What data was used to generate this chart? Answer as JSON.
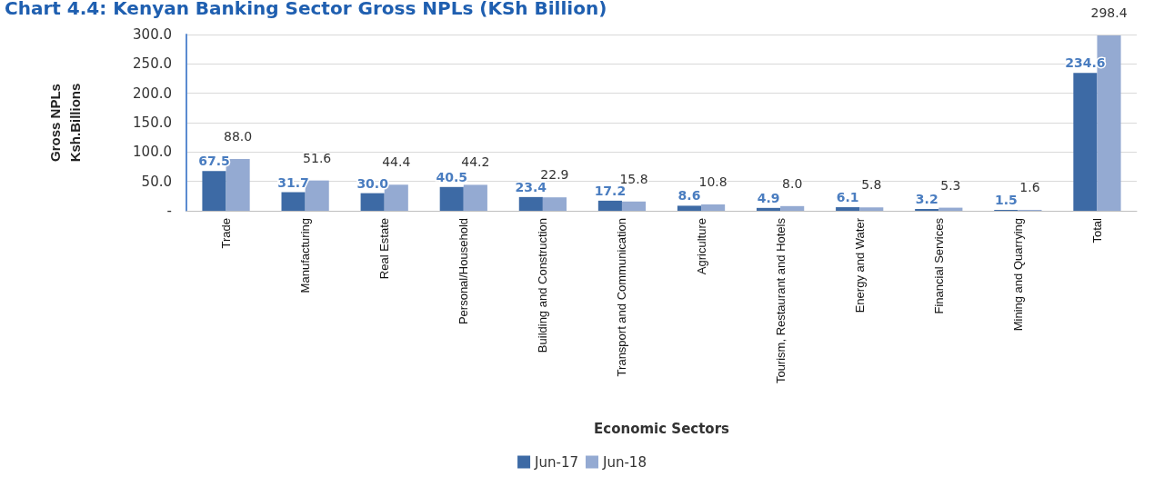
{
  "chart_data": {
    "type": "bar",
    "title": "Chart 4.4: Kenyan Banking Sector Gross NPLs (KSh Billion)",
    "xlabel": "Economic Sectors",
    "ylabel": "Gross NPLs\nKsh.Billions",
    "categories": [
      "Trade",
      "Manufacturing",
      "Real Estate",
      "Personal/Household",
      "Building and Construction",
      "Transport and Communication",
      "Agriculture",
      "Tourism, Restaurant and Hotels",
      "Energy and Water",
      "Financial Services",
      "Mining and Quarrying",
      "Total"
    ],
    "series": [
      {
        "name": "Jun-17",
        "color": "#3d6aa5",
        "values": [
          67.5,
          31.7,
          30.0,
          40.5,
          23.4,
          17.2,
          8.6,
          4.9,
          6.1,
          3.2,
          1.5,
          234.6
        ],
        "value_labels": [
          "67.5",
          "31.7",
          "30.0",
          "40.5",
          "23.4",
          "17.2",
          "8.6",
          "4.9",
          "6.1",
          "3.2",
          "1.5",
          "234.6"
        ]
      },
      {
        "name": "Jun-18",
        "color": "#94aad2",
        "values": [
          88.0,
          51.6,
          44.4,
          44.2,
          22.9,
          15.8,
          10.8,
          8.0,
          5.8,
          5.3,
          1.6,
          298.4
        ],
        "value_labels": [
          "88.0",
          "51.6",
          "44.4",
          "44.2",
          "22.9",
          "15.8",
          "10.8",
          "8.0",
          "5.8",
          "5.3",
          "1.6",
          "298.4"
        ]
      }
    ],
    "ylim": [
      0,
      300
    ],
    "yticks": [
      {
        "value": 0,
        "label": "-"
      },
      {
        "value": 50,
        "label": "50.0"
      },
      {
        "value": 100,
        "label": "100.0"
      },
      {
        "value": 150,
        "label": "150.0"
      },
      {
        "value": 200,
        "label": "200.0"
      },
      {
        "value": 250,
        "label": "250.0"
      },
      {
        "value": 300,
        "label": "300.0"
      }
    ],
    "grid": "y",
    "legend": "bottom"
  }
}
